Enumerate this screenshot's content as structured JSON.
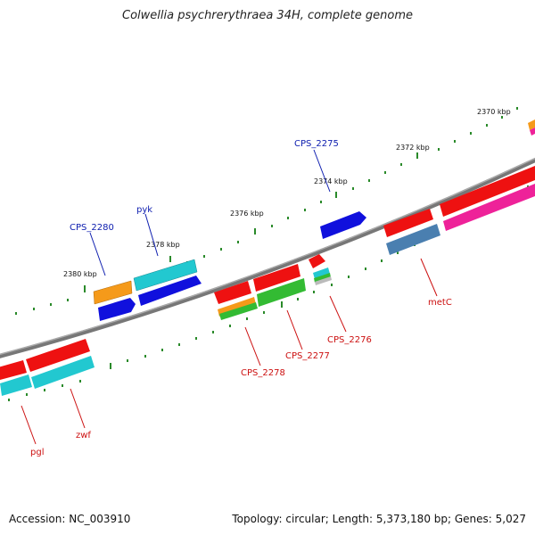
{
  "title": "Colwellia psychrerythraea 34H, complete genome",
  "footer": {
    "accession": "Accession: NC_003910",
    "topology": "Topology: circular; Length: 5,373,180 bp; Genes: 5,027"
  },
  "kbp_labels": [
    "2370 kbp",
    "2372 kbp",
    "2374 kbp",
    "2376 kbp",
    "2378 kbp",
    "2380 kbp"
  ],
  "gene_labels_top": [
    "CPS_2275",
    "pyk",
    "CPS_2280"
  ],
  "gene_labels_bottom": [
    "metC",
    "CPS_2276",
    "CPS_2277",
    "CPS_2278",
    "zwf",
    "pgl"
  ],
  "colors": {
    "red": "#ee1111",
    "blue": "#1010dd",
    "cyan": "#22c8d0",
    "orange": "#f59a1a",
    "green": "#33bb33",
    "pink": "#ee2299",
    "steel": "#4a7fb0",
    "backbone": "#888888",
    "tick": "#2a8a2a"
  }
}
